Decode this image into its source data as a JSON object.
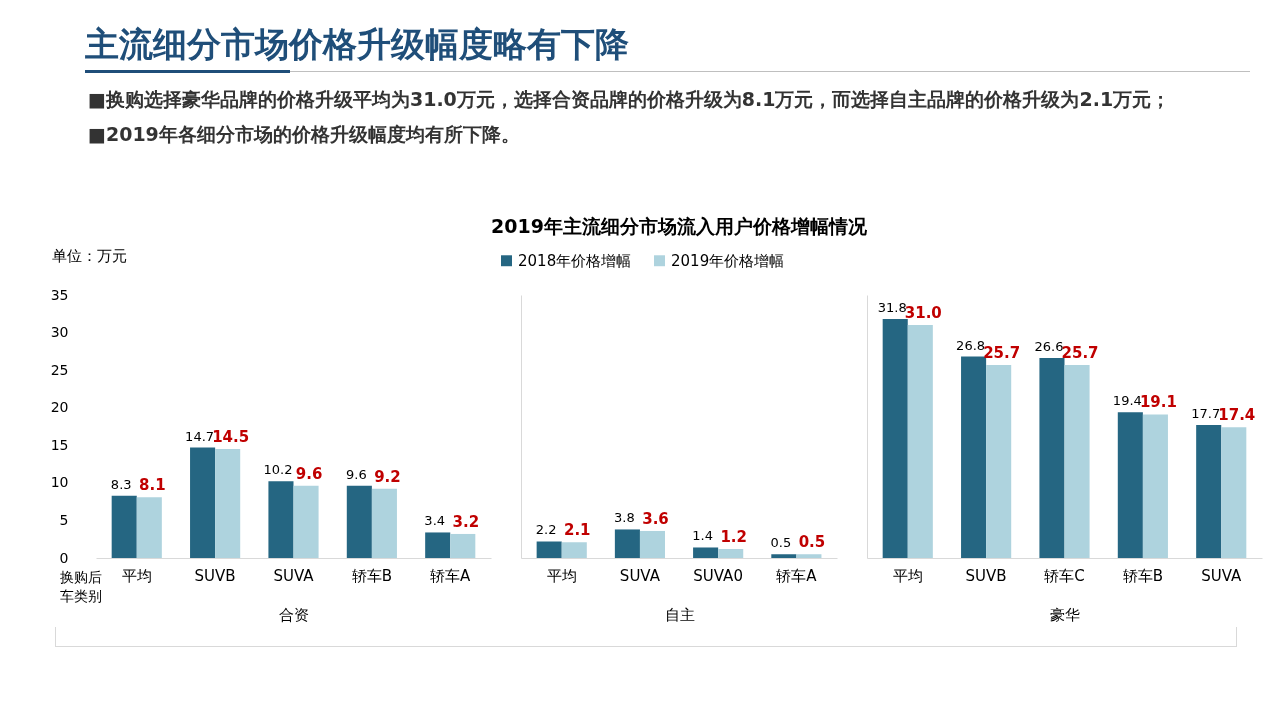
{
  "chart_data": [
    {
      "type": "bar",
      "title": "主流细分市场价格升级幅度略有下降",
      "annotations": [
        "■换购选择豪华品牌的价格升级平均为31.0万元，选择合资品牌的价格升级为8.1万元，而选择自主品牌的价格升级为2.1万元；",
        "■2019年各细分市场的价格升级幅度均有所下降。",
        "换购后车类别"
      ],
      "ylabel": "单位：万元",
      "xlabel": "合资",
      "categories": [
        "平均",
        "SUVB",
        "SUVA",
        "轿车B",
        "轿车A"
      ],
      "series": [
        {
          "name": "2018年价格增幅",
          "color": "#256682",
          "values": [
            8.3,
            14.7,
            10.2,
            9.6,
            3.4
          ],
          "value_labels": [
            "8.3",
            "14.7",
            "10.2",
            "9.6",
            "3.4"
          ]
        },
        {
          "name": "2019年价格增幅",
          "color": "#aed3de",
          "values": [
            8.1,
            14.5,
            9.6,
            9.2,
            3.2
          ],
          "value_labels": [
            "8.1",
            "14.5",
            "9.6",
            "9.2",
            "3.2"
          ]
        }
      ],
      "ylim": [
        0,
        35
      ],
      "yticks": [
        0,
        5,
        10,
        15,
        20,
        25,
        30,
        35
      ],
      "legend": "top"
    },
    {
      "type": "bar",
      "title": "2019年主流细分市场流入用户价格增幅情况",
      "xlabel": "自主",
      "categories": [
        "平均",
        "SUVA",
        "SUVA0",
        "轿车A"
      ],
      "series": [
        {
          "name": "2018年价格增幅",
          "color": "#256682",
          "values": [
            2.2,
            3.8,
            1.4,
            0.5
          ],
          "value_labels": [
            "2.2",
            "3.8",
            "1.4",
            "0.5"
          ]
        },
        {
          "name": "2019年价格增幅",
          "color": "#aed3de",
          "values": [
            2.1,
            3.6,
            1.2,
            0.5
          ],
          "value_labels": [
            "2.1",
            "3.6",
            "1.2",
            "0.5"
          ]
        }
      ],
      "ylim": [
        0,
        35
      ],
      "tick_labels": "x"
    },
    {
      "type": "bar",
      "xlabel": "豪华",
      "categories": [
        "平均",
        "SUVB",
        "轿车C",
        "轿车B",
        "SUVA"
      ],
      "series": [
        {
          "name": "2018年价格增幅",
          "color": "#256682",
          "values": [
            31.8,
            26.8,
            26.6,
            19.4,
            17.7
          ],
          "value_labels": [
            "31.8",
            "26.8",
            "26.6",
            "19.4",
            "17.7"
          ]
        },
        {
          "name": "2019年价格增幅",
          "color": "#aed3de",
          "values": [
            31.0,
            25.7,
            25.7,
            19.1,
            17.4
          ],
          "value_labels": [
            "31.0",
            "25.7",
            "25.7",
            "19.1",
            "17.4"
          ]
        }
      ],
      "ylim": [
        0,
        35
      ],
      "tick_labels": "x"
    }
  ]
}
